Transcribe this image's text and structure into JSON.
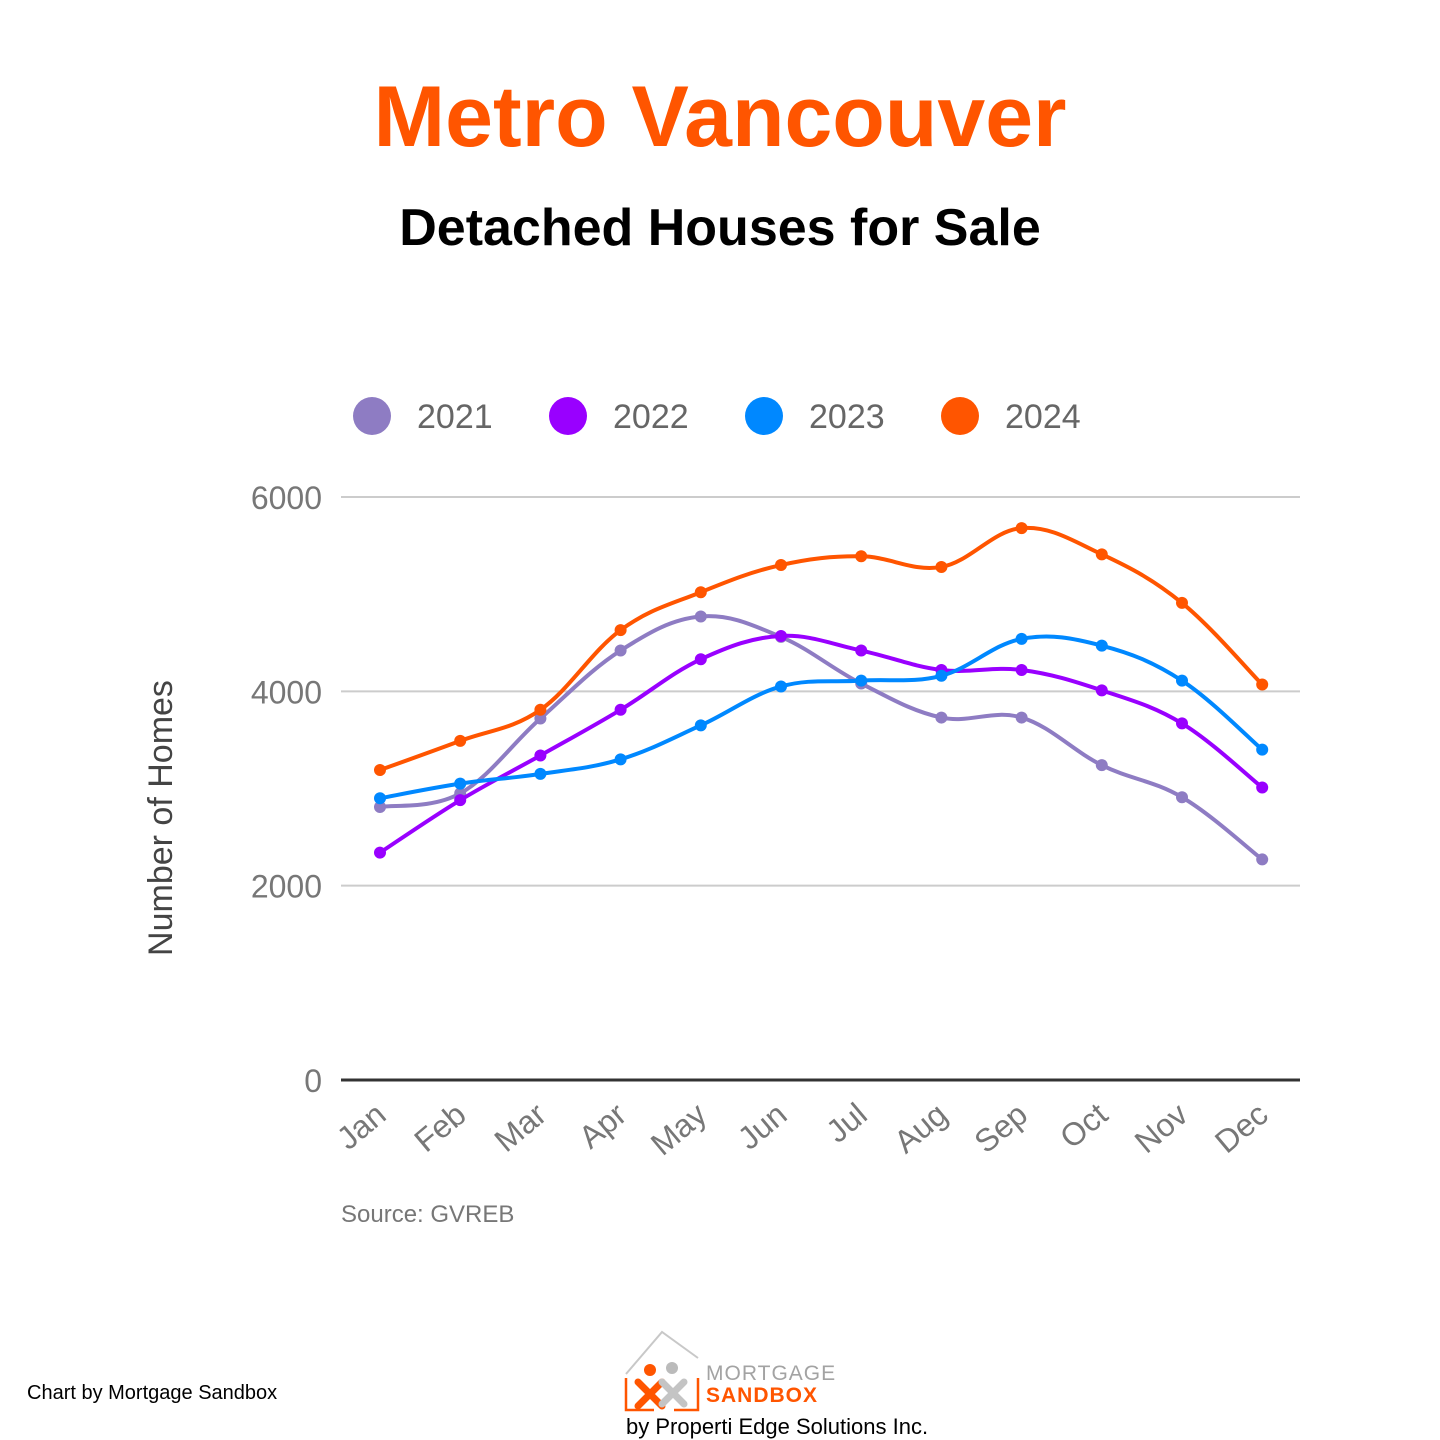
{
  "page": {
    "title": "Metro Vancouver",
    "subtitle": "Detached Houses for Sale",
    "credit": "Chart by Mortgage Sandbox",
    "logo": {
      "word1": "MORTGAGE",
      "word2": "SANDBOX",
      "tagline": "by Properti Edge Solutions Inc."
    }
  },
  "colors": {
    "title": "#ff5500",
    "gridline": "#cccccc",
    "axis": "#333333"
  },
  "chart_data": {
    "type": "line",
    "title": "Metro Vancouver",
    "subtitle": "Detached Houses for Sale",
    "xlabel": "",
    "ylabel": "Number of Homes",
    "ylim": [
      0,
      6000
    ],
    "yticks": [
      0,
      2000,
      4000,
      6000
    ],
    "ytick_labels": [
      "0",
      "2000",
      "4000",
      "6000"
    ],
    "grid": true,
    "legend_position": "top",
    "source": "Source: GVREB",
    "categories": [
      "Jan",
      "Feb",
      "Mar",
      "Apr",
      "May",
      "Jun",
      "Jul",
      "Aug",
      "Sep",
      "Oct",
      "Nov",
      "Dec"
    ],
    "series": [
      {
        "name": "2021",
        "color": "#8e7cc3",
        "values": [
          2810,
          2950,
          3720,
          4420,
          4770,
          4560,
          4080,
          3730,
          3730,
          3240,
          2910,
          2270
        ]
      },
      {
        "name": "2022",
        "color": "#9900ff",
        "values": [
          2340,
          2880,
          3340,
          3810,
          4330,
          4570,
          4420,
          4220,
          4220,
          4010,
          3670,
          3010
        ]
      },
      {
        "name": "2023",
        "color": "#0088ff",
        "values": [
          2900,
          3050,
          3150,
          3300,
          3650,
          4050,
          4110,
          4160,
          4540,
          4470,
          4110,
          3400
        ]
      },
      {
        "name": "2024",
        "color": "#ff5500",
        "values": [
          3190,
          3490,
          3810,
          4630,
          5020,
          5300,
          5390,
          5280,
          5680,
          5410,
          4910,
          4070
        ]
      }
    ]
  }
}
